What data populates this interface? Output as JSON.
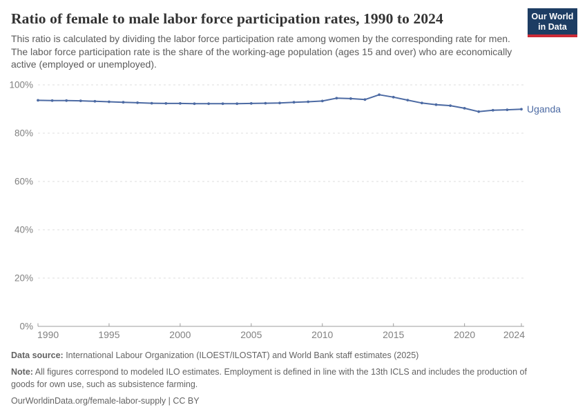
{
  "header": {
    "title": "Ratio of female to male labor force participation rates, 1990 to 2024",
    "subtitle": "This ratio is calculated by dividing the labor force participation rate among women by the corresponding rate for men. The labor force participation rate is the share of the working-age population (ages 15 and over) who are economically active (employed or unemployed).",
    "logo": {
      "line1": "Our World",
      "line2": "in Data"
    }
  },
  "chart_data": {
    "type": "line",
    "title": "Ratio of female to male labor force participation rates, 1990 to 2024",
    "x": [
      1990,
      1991,
      1992,
      1993,
      1994,
      1995,
      1996,
      1997,
      1998,
      1999,
      2000,
      2001,
      2002,
      2003,
      2004,
      2005,
      2006,
      2007,
      2008,
      2009,
      2010,
      2011,
      2012,
      2013,
      2014,
      2015,
      2016,
      2017,
      2018,
      2019,
      2020,
      2021,
      2022,
      2023,
      2024
    ],
    "series": [
      {
        "name": "Uganda",
        "color": "#4C6AA3",
        "values": [
          93.6,
          93.5,
          93.5,
          93.4,
          93.2,
          93.0,
          92.8,
          92.6,
          92.4,
          92.3,
          92.3,
          92.2,
          92.2,
          92.2,
          92.2,
          92.3,
          92.4,
          92.5,
          92.8,
          93.0,
          93.3,
          94.5,
          94.3,
          93.9,
          95.9,
          94.9,
          93.7,
          92.5,
          91.8,
          91.4,
          90.3,
          88.9,
          89.5,
          89.7,
          89.9
        ]
      }
    ],
    "ylim": [
      0,
      100
    ],
    "yticks": [
      0,
      20,
      40,
      60,
      80,
      100
    ],
    "ytick_suffix": "%",
    "xticks": [
      1990,
      1995,
      2000,
      2005,
      2010,
      2015,
      2020,
      2024
    ],
    "grid": "horizontal-dashed",
    "legend": "line-end-label",
    "marker": "circle"
  },
  "colors": {
    "gridline": "#dedede",
    "axis_line": "#9c9c9c",
    "axis_label": "#818181",
    "line": "#4C6AA3"
  },
  "footer": {
    "source_label": "Data source:",
    "source_text": " International Labour Organization (ILOEST/ILOSTAT) and World Bank staff estimates (2025)",
    "note_label": "Note:",
    "note_text": " All figures correspond to modeled ILO estimates. Employment is defined in line with the 13th ICLS and includes the production of goods for own use, such as subsistence farming.",
    "link": "OurWorldinData.org/female-labor-supply",
    "separator": " | ",
    "license": "CC BY"
  }
}
